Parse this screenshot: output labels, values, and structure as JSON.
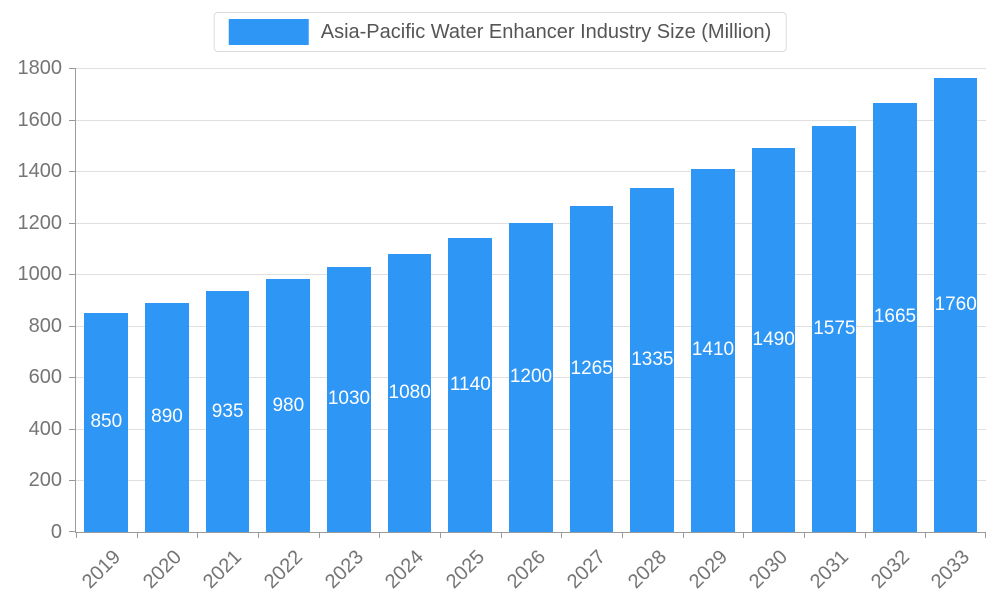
{
  "legend": {
    "label": "Asia-Pacific Water Enhancer Industry Size (Million)"
  },
  "colors": {
    "bar": "#2E96F5",
    "grid": "#E0E0E0",
    "axis": "#9A9A9A",
    "tick_text": "#757575",
    "bar_label_text": "#FFFFFF",
    "legend_text": "#555555"
  },
  "chart_data": {
    "type": "bar",
    "title": "Asia-Pacific Water Enhancer Industry Size (Million)",
    "categories": [
      "2019",
      "2020",
      "2021",
      "2022",
      "2023",
      "2024",
      "2025",
      "2026",
      "2027",
      "2028",
      "2029",
      "2030",
      "2031",
      "2032",
      "2033"
    ],
    "values": [
      850,
      890,
      935,
      980,
      1030,
      1080,
      1140,
      1200,
      1265,
      1335,
      1410,
      1490,
      1575,
      1665,
      1760
    ],
    "xlabel": "",
    "ylabel": "",
    "ylim": [
      0,
      1800
    ],
    "ytick_interval": 200,
    "grid": true,
    "legend_position": "top",
    "bar_label_position": "inside-middle",
    "x_tick_label_rotation": -45
  }
}
